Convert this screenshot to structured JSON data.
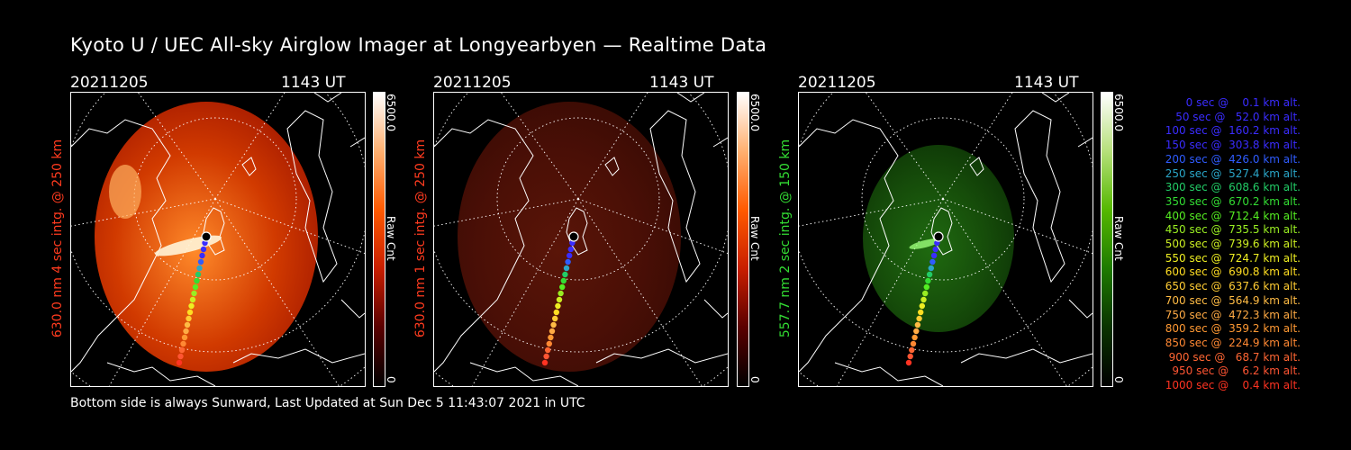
{
  "title": "Kyoto U / UEC All-sky Airglow Imager at Longyearbyen — Realtime Data",
  "footer": "Bottom side is always Sunward, Last Updated at Sun Dec  5 11:43:07 2021 in UTC",
  "panels": [
    {
      "date": "20211205",
      "time": "1143 UT",
      "ylabel": "630.0 nm 4 sec intg. @ 250 km",
      "ylabel_color": "#ff3b1f",
      "cbar_max": "6500.0",
      "cbar_min": "0",
      "cbar_unit": "Raw Cnt",
      "cbar_color": "#ff3300",
      "image_brightness": 1.0
    },
    {
      "date": "20211205",
      "time": "1143 UT",
      "ylabel": "630.0 nm 1 sec intg. @ 250 km",
      "ylabel_color": "#ff3b1f",
      "cbar_max": "6500.0",
      "cbar_min": "0",
      "cbar_unit": "Raw Cnt",
      "cbar_color": "#ff3300",
      "image_brightness": 0.3
    },
    {
      "date": "20211205",
      "time": "1143 UT",
      "ylabel": "557.7 nm 2 sec intg. @ 150 km",
      "ylabel_color": "#33dd33",
      "cbar_max": "6500.0",
      "cbar_min": "0",
      "cbar_unit": "Raw Cnt",
      "cbar_color": "#33cc00",
      "image_brightness": 0.45
    }
  ],
  "legend": [
    {
      "text": "   0 sec @    0.1 km alt.",
      "color": "#3a2cff"
    },
    {
      "text": "  50 sec @   52.0 km alt.",
      "color": "#3a2cff"
    },
    {
      "text": " 100 sec @  160.2 km alt.",
      "color": "#3a2cff"
    },
    {
      "text": " 150 sec @  303.8 km alt.",
      "color": "#3a2cff"
    },
    {
      "text": " 200 sec @  426.0 km alt.",
      "color": "#2f5cff"
    },
    {
      "text": " 250 sec @  527.4 km alt.",
      "color": "#2aa6c8"
    },
    {
      "text": " 300 sec @  608.6 km alt.",
      "color": "#22cc66"
    },
    {
      "text": " 350 sec @  670.2 km alt.",
      "color": "#33dd33"
    },
    {
      "text": " 400 sec @  712.4 km alt.",
      "color": "#55ee22"
    },
    {
      "text": " 450 sec @  735.5 km alt.",
      "color": "#99ee22"
    },
    {
      "text": " 500 sec @  739.6 km alt.",
      "color": "#ccee22"
    },
    {
      "text": " 550 sec @  724.7 km alt.",
      "color": "#eeee22"
    },
    {
      "text": " 600 sec @  690.8 km alt.",
      "color": "#ffdd22"
    },
    {
      "text": " 650 sec @  637.6 km alt.",
      "color": "#ffcc33"
    },
    {
      "text": " 700 sec @  564.9 km alt.",
      "color": "#ffbb44"
    },
    {
      "text": " 750 sec @  472.3 km alt.",
      "color": "#ffaa44"
    },
    {
      "text": " 800 sec @  359.2 km alt.",
      "color": "#ff9933"
    },
    {
      "text": " 850 sec @  224.9 km alt.",
      "color": "#ff8833"
    },
    {
      "text": " 900 sec @   68.7 km alt.",
      "color": "#ff6633"
    },
    {
      "text": " 950 sec @    6.2 km alt.",
      "color": "#ff5533"
    },
    {
      "text": "1000 sec @    0.4 km alt.",
      "color": "#ff3322"
    }
  ]
}
